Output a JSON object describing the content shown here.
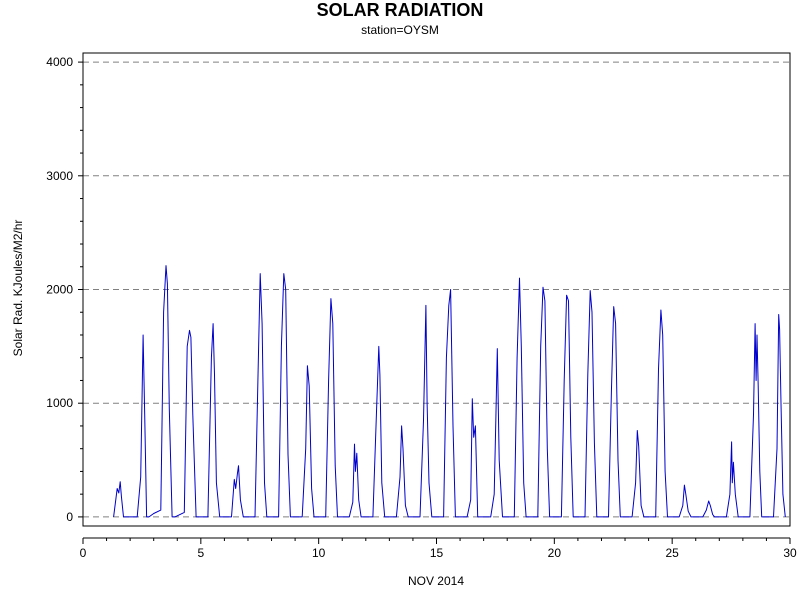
{
  "chart_data": {
    "type": "line",
    "title": "SOLAR RADIATION",
    "subtitle": "station=OYSM",
    "xlabel": "NOV 2014",
    "ylabel": "Solar Rad. KJoules/M2/hr",
    "xlim": [
      0,
      30
    ],
    "ylim": [
      -80,
      4080
    ],
    "xticks": [
      0,
      5,
      10,
      15,
      20,
      25,
      30
    ],
    "yticks": [
      0,
      1000,
      2000,
      3000,
      4000
    ],
    "grid": "horizontal dashed",
    "colors": {
      "line": "#0000cc",
      "grid": "#808080",
      "axis": "#000000"
    },
    "series": [
      {
        "x": [
          1.3,
          1.45,
          1.52,
          1.58,
          1.63,
          1.72,
          1.8,
          2.3,
          2.45,
          2.55,
          2.62,
          2.7,
          2.8,
          3.0,
          3.3,
          3.42,
          3.52,
          3.58,
          3.66,
          3.78,
          3.9,
          4.3,
          4.42,
          4.52,
          4.58,
          4.66,
          4.8,
          5.3,
          5.45,
          5.52,
          5.58,
          5.66,
          5.8,
          6.3,
          6.42,
          6.48,
          6.55,
          6.6,
          6.68,
          6.8,
          7.3,
          7.42,
          7.52,
          7.6,
          7.7,
          7.8,
          8.3,
          8.42,
          8.52,
          8.6,
          8.7,
          8.8,
          9.3,
          9.45,
          9.52,
          9.6,
          9.7,
          9.8,
          10.3,
          10.42,
          10.52,
          10.6,
          10.7,
          10.8,
          11.3,
          11.45,
          11.52,
          11.56,
          11.62,
          11.7,
          11.8,
          12.3,
          12.45,
          12.55,
          12.6,
          12.68,
          12.8,
          13.3,
          13.45,
          13.52,
          13.58,
          13.68,
          13.8,
          14.3,
          14.45,
          14.55,
          14.6,
          14.68,
          14.8,
          15.3,
          15.42,
          15.52,
          15.6,
          15.7,
          15.8,
          16.3,
          16.45,
          16.52,
          16.58,
          16.65,
          16.75,
          17.3,
          17.45,
          17.52,
          17.58,
          17.66,
          17.8,
          18.3,
          18.42,
          18.52,
          18.6,
          18.7,
          18.8,
          19.3,
          19.42,
          19.52,
          19.6,
          19.7,
          19.8,
          20.3,
          20.42,
          20.52,
          20.6,
          20.7,
          20.8,
          21.3,
          21.42,
          21.52,
          21.6,
          21.7,
          21.8,
          22.3,
          22.42,
          22.52,
          22.6,
          22.7,
          22.8,
          23.3,
          23.45,
          23.52,
          23.58,
          23.68,
          23.8,
          24.3,
          24.42,
          24.52,
          24.6,
          24.7,
          24.8,
          25.3,
          25.45,
          25.52,
          25.58,
          25.68,
          25.8,
          26.3,
          26.45,
          26.55,
          26.62,
          26.72,
          26.8,
          27.3,
          27.45,
          27.52,
          27.55,
          27.6,
          27.68,
          27.8,
          28.3,
          28.45,
          28.52,
          28.56,
          28.6,
          28.65,
          28.72,
          28.8,
          29.3,
          29.45,
          29.52,
          29.56,
          29.62,
          29.7,
          29.8
        ],
        "y": [
          0,
          250,
          210,
          310,
          180,
          0,
          0,
          0,
          350,
          1600,
          900,
          0,
          0,
          30,
          60,
          1800,
          2210,
          2050,
          950,
          0,
          0,
          40,
          1500,
          1640,
          1580,
          900,
          0,
          0,
          1400,
          1700,
          1250,
          300,
          0,
          0,
          330,
          250,
          380,
          450,
          150,
          0,
          0,
          1200,
          2140,
          1700,
          300,
          0,
          0,
          1500,
          2140,
          2000,
          550,
          0,
          0,
          600,
          1330,
          1150,
          250,
          0,
          0,
          1200,
          1920,
          1700,
          450,
          0,
          0,
          130,
          640,
          400,
          560,
          150,
          0,
          0,
          900,
          1500,
          1250,
          300,
          0,
          0,
          350,
          800,
          600,
          100,
          0,
          0,
          850,
          1860,
          1000,
          300,
          0,
          0,
          1400,
          1860,
          2000,
          800,
          0,
          0,
          150,
          1040,
          700,
          800,
          0,
          0,
          200,
          880,
          1480,
          500,
          0,
          0,
          1400,
          2100,
          1500,
          300,
          0,
          0,
          1500,
          2020,
          1900,
          600,
          0,
          0,
          1200,
          1950,
          1900,
          700,
          0,
          0,
          1250,
          1990,
          1800,
          650,
          0,
          0,
          1100,
          1850,
          1700,
          500,
          0,
          0,
          300,
          760,
          620,
          100,
          0,
          0,
          1300,
          1820,
          1600,
          400,
          0,
          0,
          100,
          280,
          200,
          50,
          0,
          0,
          60,
          140,
          100,
          20,
          0,
          0,
          200,
          660,
          300,
          480,
          200,
          0,
          0,
          900,
          1700,
          1200,
          1600,
          1150,
          400,
          0,
          0,
          600,
          1780,
          1650,
          1000,
          200,
          0
        ]
      }
    ]
  }
}
